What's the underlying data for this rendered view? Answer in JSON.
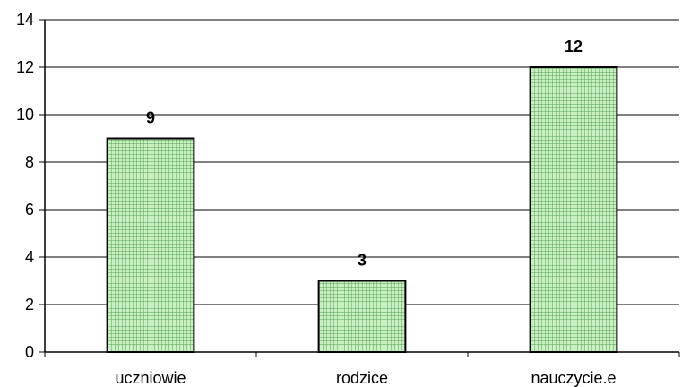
{
  "chart_data": {
    "type": "bar",
    "categories": [
      "uczniowie",
      "rodzice",
      "nauczycie.e"
    ],
    "values": [
      9,
      3,
      12
    ],
    "data_labels": [
      "9",
      "3",
      "12"
    ],
    "title": "",
    "xlabel": "",
    "ylabel": "",
    "ylim": [
      0,
      14
    ],
    "yticks": [
      0,
      2,
      4,
      6,
      8,
      10,
      12,
      14
    ],
    "grid": "horizontal",
    "legend": "none",
    "colors": {
      "bar_fill": "#c8f0c0",
      "bar_hatch": "#5aa05a",
      "bar_edge": "#000000",
      "grid": "#000000"
    }
  }
}
